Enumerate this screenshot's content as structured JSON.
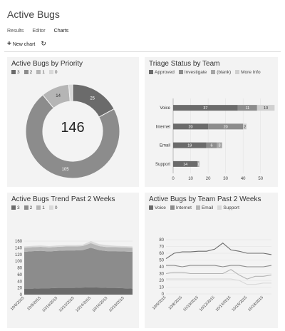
{
  "app": {
    "title": "Active Bugs"
  },
  "tabs": [
    {
      "label": "Results"
    },
    {
      "label": "Editor"
    },
    {
      "label": "Charts"
    }
  ],
  "toolbar": {
    "new_chart_label": "New chart"
  },
  "colors": {
    "s3": "#6b6b6b",
    "s2": "#8c8c8c",
    "s1": "#b5b5b5",
    "s0": "#d9d9d9",
    "approved": "#6b6b6b",
    "investigate": "#8c8c8c",
    "blank": "#a6a6a6",
    "moreinfo": "#d0d0d0"
  },
  "cards": {
    "priority": {
      "title": "Active Bugs by Priority",
      "legend": [
        "3",
        "2",
        "1",
        "0"
      ],
      "center_total": "146"
    },
    "triage": {
      "title": "Triage Status by Team",
      "legend": [
        "Approved",
        "Investigate",
        "(blank)",
        "More Info"
      ]
    },
    "trend": {
      "title": "Active Bugs Trend Past 2 Weeks",
      "legend": [
        "3",
        "2",
        "1",
        "0"
      ]
    },
    "team": {
      "title": "Active Bugs by Team Past 2 Weeks",
      "legend": [
        "Voice",
        "Internet",
        "Email",
        "Support"
      ]
    }
  },
  "chart_data": [
    {
      "type": "pie",
      "title": "Active Bugs by Priority",
      "labels": [
        "3",
        "2",
        "1",
        "0"
      ],
      "values": [
        25,
        105,
        14,
        2
      ],
      "total": 146
    },
    {
      "type": "bar",
      "orientation": "horizontal",
      "stacked": true,
      "title": "Triage Status by Team",
      "categories": [
        "Voice",
        "Internet",
        "Email",
        "Support"
      ],
      "series": [
        {
          "name": "Approved",
          "values": [
            37,
            20,
            19,
            14
          ]
        },
        {
          "name": "Investigate",
          "values": [
            11,
            20,
            6,
            0
          ]
        },
        {
          "name": "(blank)",
          "values": [
            0,
            0,
            3,
            1
          ]
        },
        {
          "name": "More Info",
          "values": [
            10,
            2,
            0,
            0
          ]
        }
      ],
      "xlim": [
        0,
        55
      ],
      "xticks": [
        0,
        10,
        20,
        30,
        40,
        50
      ]
    },
    {
      "type": "area",
      "stacked": true,
      "title": "Active Bugs Trend Past 2 Weeks",
      "x": [
        "10/6/2015",
        "10/7/2015",
        "10/8/2015",
        "10/9/2015",
        "10/10/2015",
        "10/11/2015",
        "10/12/2015",
        "10/13/2015",
        "10/14/2015",
        "10/15/2015",
        "10/16/2015",
        "10/17/2015",
        "10/18/2015",
        "10/19/2015"
      ],
      "xticklabels": [
        "10/6/2015",
        "10/8/2015",
        "10/10/2015",
        "10/12/2015",
        "10/14/2015",
        "10/16/2015",
        "10/18/2015"
      ],
      "series": [
        {
          "name": "3",
          "values": [
            18,
            18,
            19,
            19,
            20,
            20,
            20,
            21,
            22,
            21,
            20,
            20,
            19,
            18
          ]
        },
        {
          "name": "2",
          "values": [
            110,
            112,
            112,
            110,
            111,
            112,
            112,
            112,
            118,
            112,
            110,
            110,
            110,
            110
          ]
        },
        {
          "name": "1",
          "values": [
            12,
            12,
            12,
            12,
            12,
            12,
            12,
            12,
            14,
            12,
            12,
            12,
            12,
            12
          ]
        },
        {
          "name": "0",
          "values": [
            4,
            4,
            4,
            4,
            4,
            4,
            4,
            4,
            6,
            6,
            6,
            4,
            4,
            4
          ]
        }
      ],
      "ylim": [
        0,
        160
      ],
      "yticks": [
        0,
        20,
        40,
        60,
        80,
        100,
        120,
        140,
        160
      ]
    },
    {
      "type": "line",
      "title": "Active Bugs by Team Past 2 Weeks",
      "x": [
        "10/6/2015",
        "10/7/2015",
        "10/8/2015",
        "10/9/2015",
        "10/10/2015",
        "10/11/2015",
        "10/12/2015",
        "10/13/2015",
        "10/14/2015",
        "10/15/2015",
        "10/16/2015",
        "10/17/2015",
        "10/18/2015",
        "10/19/2015"
      ],
      "xticklabels": [
        "10/6/2015",
        "10/8/2015",
        "10/10/2015",
        "10/12/2015",
        "10/14/2015",
        "10/16/2015",
        "10/18/2015"
      ],
      "series": [
        {
          "name": "Voice",
          "values": [
            52,
            60,
            62,
            62,
            63,
            63,
            66,
            75,
            65,
            63,
            60,
            60,
            60,
            58
          ]
        },
        {
          "name": "Internet",
          "values": [
            42,
            42,
            40,
            42,
            42,
            42,
            42,
            40,
            42,
            42,
            40,
            40,
            40,
            42
          ]
        },
        {
          "name": "Email",
          "values": [
            30,
            32,
            32,
            30,
            30,
            30,
            30,
            30,
            36,
            28,
            22,
            26,
            26,
            28
          ]
        },
        {
          "name": "Support",
          "values": [
            22,
            22,
            22,
            22,
            22,
            22,
            22,
            22,
            22,
            20,
            14,
            14,
            16,
            16
          ]
        }
      ],
      "ylim": [
        0,
        80
      ],
      "yticks": [
        0,
        10,
        20,
        30,
        40,
        50,
        60,
        70,
        80
      ]
    }
  ]
}
